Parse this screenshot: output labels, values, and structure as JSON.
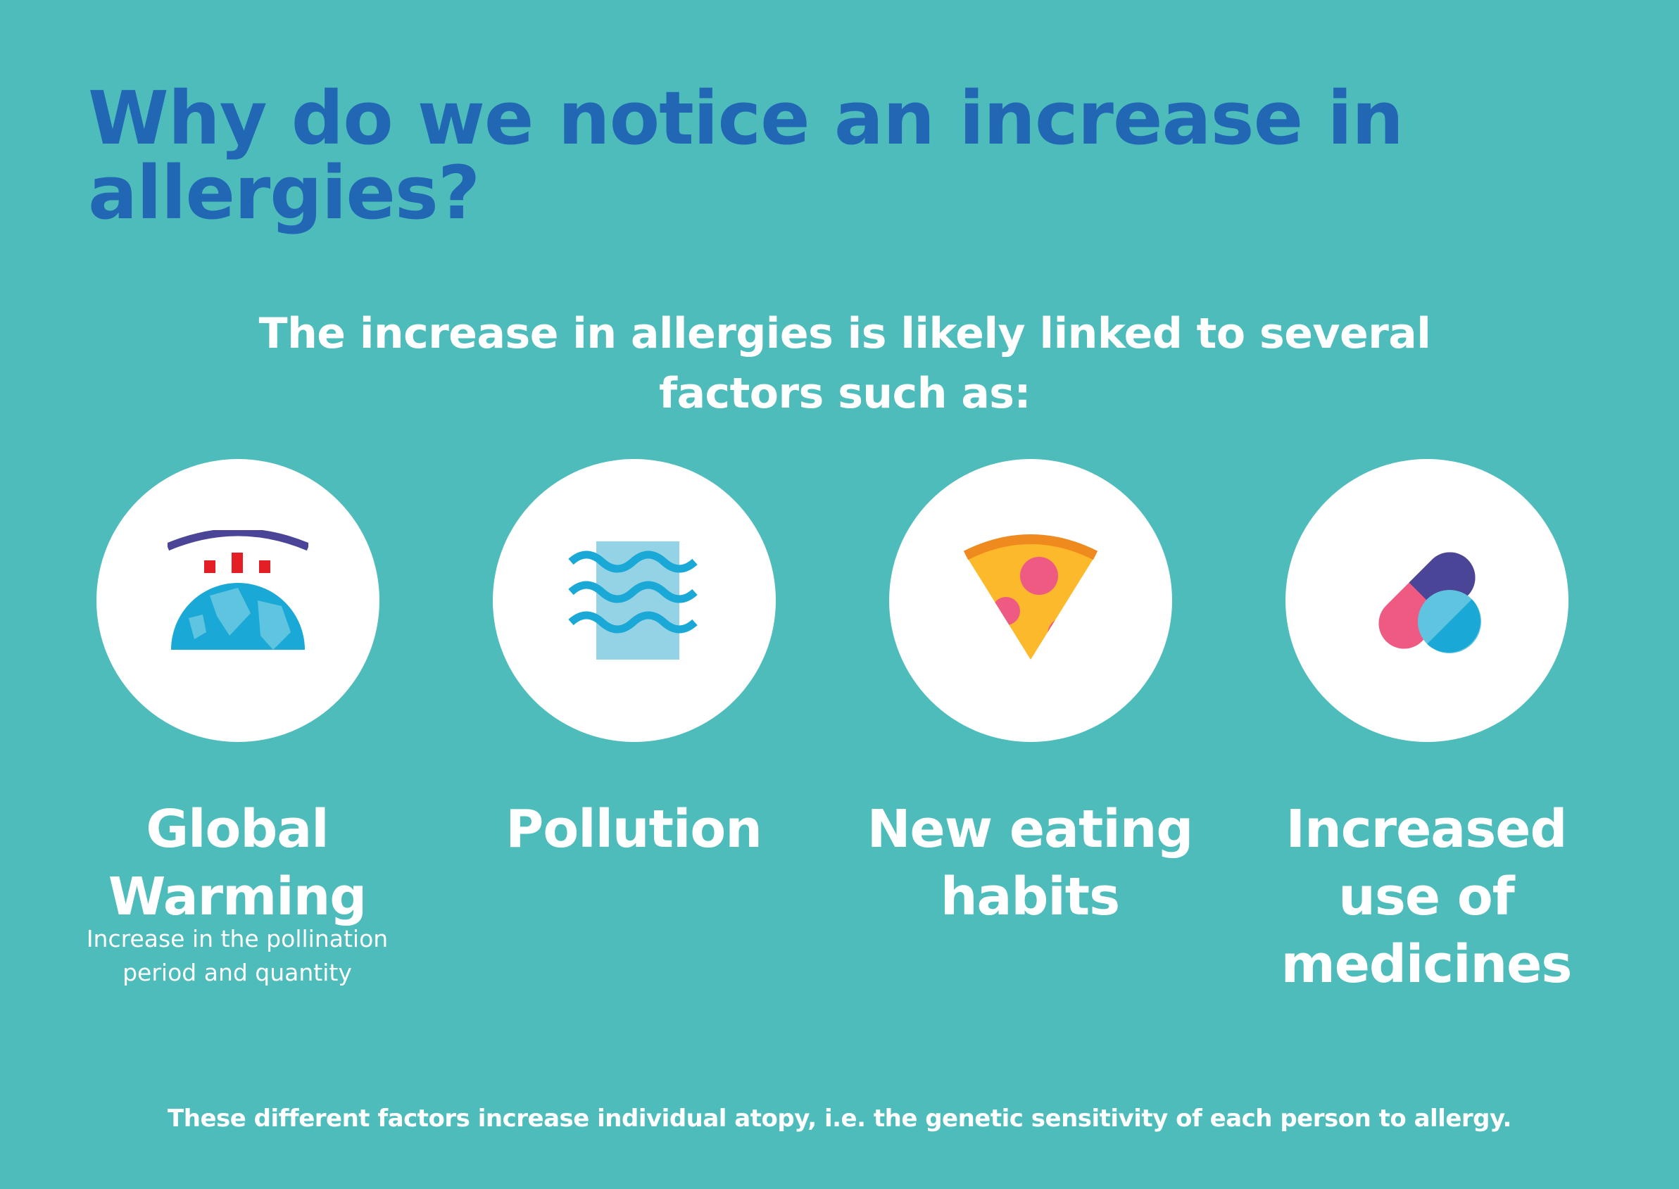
{
  "title": "Why do we notice an increase in allergies?",
  "subtitle": "The increase in allergies is likely linked to several factors such as:",
  "factors": [
    {
      "label": "Global Warming",
      "description": "Increase in the pollination period and quantity",
      "icon": "globe-warming-icon"
    },
    {
      "label": "Pollution",
      "description": "",
      "icon": "pollution-waves-icon"
    },
    {
      "label": "New eating habits",
      "description": "",
      "icon": "pizza-slice-icon"
    },
    {
      "label": "Increased use of medicines",
      "description": "",
      "icon": "pills-icon"
    }
  ],
  "footer": "These different factors increase individual atopy, i.e. the genetic sensitivity of each person to allergy.",
  "colors": {
    "background": "#4dbcbb",
    "title": "#2167b4",
    "text": "#ffffff",
    "circle": "#ffffff"
  }
}
